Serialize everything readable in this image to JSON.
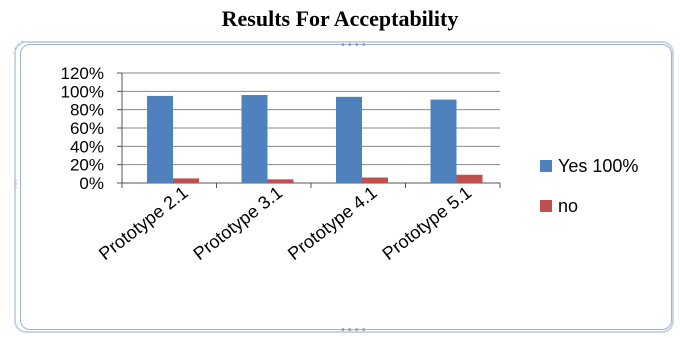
{
  "chart_data": {
    "type": "bar",
    "title": "Results For Acceptability",
    "categories": [
      "Prototype 2.1",
      "Prototype 3.1",
      "Prototype 4.1",
      "Prototype 5.1"
    ],
    "series": [
      {
        "name": "Yes  100%",
        "values": [
          95,
          96,
          94,
          91
        ],
        "color": "#4f81bd"
      },
      {
        "name": "no",
        "values": [
          5,
          4,
          6,
          9
        ],
        "color": "#c0504d"
      }
    ],
    "ylim": [
      0,
      120
    ],
    "yticks": [
      "0%",
      "20%",
      "40%",
      "60%",
      "80%",
      "100%",
      "120%"
    ],
    "grid": true,
    "legend": "right"
  }
}
